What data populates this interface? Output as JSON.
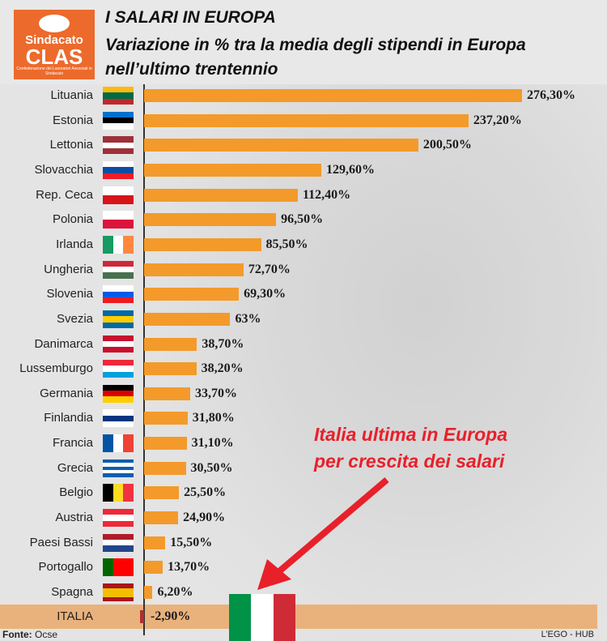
{
  "logo": {
    "line1": "Sindacato",
    "line2": "CLAS",
    "line3": "Confederazione dei Lavoratori Associati in Sindacato"
  },
  "header": {
    "title": "I SALARI IN EUROPA",
    "subtitle_line1": "Variazione in % tra la media degli stipendi in Europa",
    "subtitle_line2": "nell’ultimo trentennio"
  },
  "annotation": {
    "line1": "Italia ultima in Europa",
    "line2": "per crescita dei salari"
  },
  "footer": {
    "source_label": "Fonte:",
    "source": "Ocse",
    "credit": "L’EGO - HUB"
  },
  "colors": {
    "bar": "#f39a2b",
    "negative_bar": "#b03030",
    "highlight_band": "#e9b27c",
    "annotation": "#e8202a"
  },
  "chart_data": {
    "type": "bar",
    "orientation": "horizontal",
    "title": "I SALARI IN EUROPA",
    "subtitle": "Variazione in % tra la media degli stipendi in Europa nell’ultimo trentennio",
    "xlabel": "",
    "ylabel": "",
    "xlim": [
      -5,
      280
    ],
    "categories": [
      "Lituania",
      "Estonia",
      "Lettonia",
      "Slovacchia",
      "Rep. Ceca",
      "Polonia",
      "Irlanda",
      "Ungheria",
      "Slovenia",
      "Svezia",
      "Danimarca",
      "Lussemburgo",
      "Germania",
      "Finlandia",
      "Francia",
      "Grecia",
      "Belgio",
      "Austria",
      "Paesi Bassi",
      "Portogallo",
      "Spagna",
      "ITALIA"
    ],
    "values": [
      276.3,
      237.2,
      200.5,
      129.6,
      112.4,
      96.5,
      85.5,
      72.7,
      69.3,
      63,
      38.7,
      38.2,
      33.7,
      31.8,
      31.1,
      30.5,
      25.5,
      24.9,
      15.5,
      13.7,
      6.2,
      -2.9
    ],
    "labels": [
      "276,30%",
      "237,20%",
      "200,50%",
      "129,60%",
      "112,40%",
      "96,50%",
      "85,50%",
      "72,70%",
      "69,30%",
      "63%",
      "38,70%",
      "38,20%",
      "33,70%",
      "31,80%",
      "31,10%",
      "30,50%",
      "25,50%",
      "24,90%",
      "15,50%",
      "13,70%",
      "6,20%",
      "-2,90%"
    ],
    "flags": [
      {
        "dir": "h",
        "c": [
          "#fdb913",
          "#006a44",
          "#c1272d"
        ]
      },
      {
        "dir": "h",
        "c": [
          "#0072ce",
          "#000000",
          "#ffffff"
        ]
      },
      {
        "dir": "h",
        "c": [
          "#9e3039",
          "#ffffff",
          "#9e3039"
        ]
      },
      {
        "dir": "h",
        "c": [
          "#ffffff",
          "#0b4ea2",
          "#ee1c25"
        ]
      },
      {
        "dir": "h",
        "c": [
          "#ffffff",
          "#d7141a"
        ]
      },
      {
        "dir": "h",
        "c": [
          "#ffffff",
          "#dc143c"
        ]
      },
      {
        "dir": "v",
        "c": [
          "#169b62",
          "#ffffff",
          "#ff883e"
        ]
      },
      {
        "dir": "h",
        "c": [
          "#ce2939",
          "#ffffff",
          "#477050"
        ]
      },
      {
        "dir": "h",
        "c": [
          "#ffffff",
          "#005ce5",
          "#ed1c24"
        ]
      },
      {
        "dir": "h",
        "c": [
          "#006aa7",
          "#fecc00",
          "#006aa7"
        ]
      },
      {
        "dir": "h",
        "c": [
          "#c8102e",
          "#ffffff",
          "#c8102e"
        ]
      },
      {
        "dir": "h",
        "c": [
          "#ed2939",
          "#ffffff",
          "#00a1de"
        ]
      },
      {
        "dir": "h",
        "c": [
          "#000000",
          "#dd0000",
          "#ffce00"
        ]
      },
      {
        "dir": "h",
        "c": [
          "#ffffff",
          "#003580",
          "#ffffff"
        ]
      },
      {
        "dir": "v",
        "c": [
          "#0055a4",
          "#ffffff",
          "#ef4135"
        ]
      },
      {
        "dir": "h",
        "c": [
          "#0d5eaf",
          "#ffffff",
          "#0d5eaf",
          "#ffffff",
          "#0d5eaf"
        ]
      },
      {
        "dir": "v",
        "c": [
          "#000000",
          "#fdda24",
          "#ef3340"
        ]
      },
      {
        "dir": "h",
        "c": [
          "#ed2939",
          "#ffffff",
          "#ed2939"
        ]
      },
      {
        "dir": "h",
        "c": [
          "#ae1c28",
          "#ffffff",
          "#21468b"
        ]
      },
      {
        "dir": "v",
        "c": [
          "#006600",
          "#ff0000",
          "#ff0000"
        ]
      },
      {
        "dir": "h",
        "c": [
          "#aa151b",
          "#f1bf00",
          "#f1bf00",
          "#aa151b"
        ]
      }
    ],
    "highlight_flag": {
      "dir": "v",
      "c": [
        "#009246",
        "#ffffff",
        "#ce2b37"
      ]
    }
  }
}
